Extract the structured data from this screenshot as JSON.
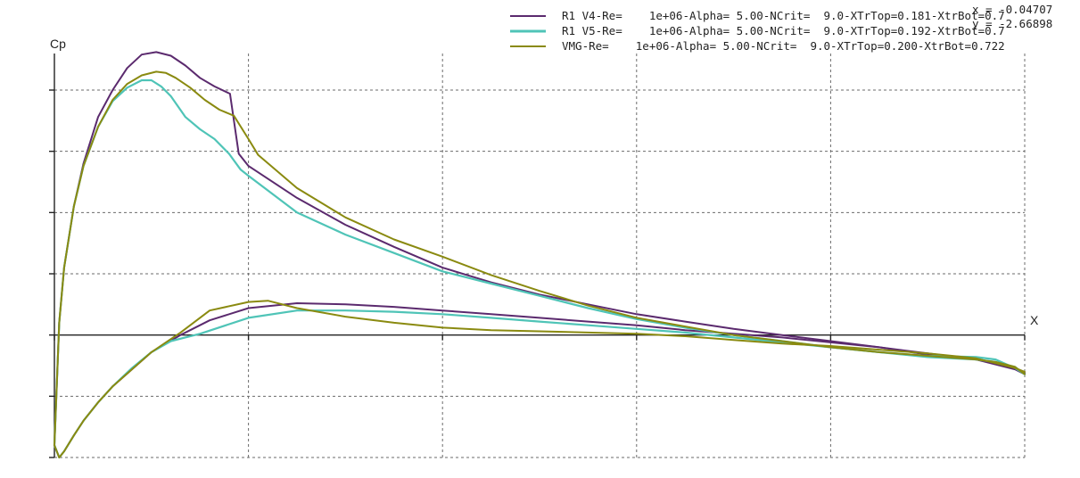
{
  "chart_data": {
    "type": "line",
    "xlabel": "X",
    "ylabel": "Cp",
    "xlim": [
      0.0,
      1.0
    ],
    "ylim": [
      1.0,
      -2.0
    ],
    "y_axis_inverted": true,
    "xticks": [
      0.0,
      0.2,
      0.4,
      0.6,
      0.8,
      1.0
    ],
    "yticks": [
      -2.0,
      -1.5,
      -1.0,
      -0.5,
      0.0,
      0.5,
      1.0
    ],
    "grid": true,
    "legend_position": "top-right",
    "cursor_readout": {
      "x_text": "x = -0.04707",
      "y_text": "y = -2.66898"
    },
    "series": [
      {
        "name": "R1 V4-Re=    1e+06-Alpha= 5.00-NCrit=  9.0-XTrTop=0.181-XtrBot=0.7",
        "color": "#5b2a6e",
        "upper": {
          "x": [
            0.0,
            0.005,
            0.01,
            0.02,
            0.03,
            0.045,
            0.06,
            0.075,
            0.09,
            0.105,
            0.12,
            0.135,
            0.15,
            0.165,
            0.181,
            0.19,
            0.2,
            0.25,
            0.3,
            0.35,
            0.4,
            0.45,
            0.5,
            0.55,
            0.6,
            0.65,
            0.7,
            0.75,
            0.8,
            0.85,
            0.9,
            0.95,
            0.97,
            0.99,
            1.0
          ],
          "cp": [
            0.9,
            -0.1,
            -0.55,
            -1.05,
            -1.4,
            -1.78,
            -2.0,
            -2.18,
            -2.29,
            -2.31,
            -2.28,
            -2.2,
            -2.1,
            -2.03,
            -1.97,
            -1.48,
            -1.38,
            -1.12,
            -0.9,
            -0.72,
            -0.55,
            -0.43,
            -0.33,
            -0.25,
            -0.17,
            -0.11,
            -0.05,
            0.0,
            0.05,
            0.1,
            0.16,
            0.2,
            0.24,
            0.28,
            0.32
          ]
        },
        "lower": {
          "x": [
            0.0,
            0.005,
            0.01,
            0.02,
            0.03,
            0.045,
            0.06,
            0.08,
            0.1,
            0.13,
            0.16,
            0.2,
            0.25,
            0.3,
            0.35,
            0.4,
            0.45,
            0.5,
            0.55,
            0.6,
            0.65,
            0.7,
            0.75,
            0.8,
            0.85,
            0.9,
            0.95,
            0.97,
            0.99,
            1.0
          ],
          "cp": [
            0.9,
            1.0,
            0.95,
            0.82,
            0.7,
            0.55,
            0.42,
            0.28,
            0.14,
            0.0,
            -0.12,
            -0.22,
            -0.26,
            -0.25,
            -0.23,
            -0.2,
            -0.17,
            -0.14,
            -0.11,
            -0.08,
            -0.04,
            -0.01,
            0.02,
            0.06,
            0.1,
            0.15,
            0.2,
            0.23,
            0.27,
            0.31
          ]
        }
      },
      {
        "name": "R1 V5-Re=    1e+06-Alpha= 5.00-NCrit=  9.0-XTrTop=0.192-XtrBot=0.7",
        "color": "#4fc4b7",
        "upper": {
          "x": [
            0.0,
            0.005,
            0.01,
            0.02,
            0.03,
            0.045,
            0.06,
            0.075,
            0.09,
            0.1,
            0.11,
            0.12,
            0.135,
            0.15,
            0.165,
            0.18,
            0.192,
            0.2,
            0.25,
            0.3,
            0.35,
            0.4,
            0.45,
            0.5,
            0.55,
            0.6,
            0.65,
            0.7,
            0.75,
            0.8,
            0.85,
            0.9,
            0.95,
            0.97,
            0.99,
            1.0
          ],
          "cp": [
            0.9,
            -0.1,
            -0.55,
            -1.05,
            -1.38,
            -1.7,
            -1.91,
            -2.02,
            -2.08,
            -2.08,
            -2.03,
            -1.95,
            -1.78,
            -1.68,
            -1.6,
            -1.48,
            -1.35,
            -1.3,
            -1.0,
            -0.82,
            -0.67,
            -0.52,
            -0.42,
            -0.32,
            -0.22,
            -0.13,
            -0.06,
            0.0,
            0.05,
            0.1,
            0.14,
            0.17,
            0.18,
            0.2,
            0.27,
            0.32
          ]
        },
        "lower": {
          "x": [
            0.0,
            0.005,
            0.01,
            0.02,
            0.03,
            0.045,
            0.06,
            0.08,
            0.1,
            0.12,
            0.15,
            0.2,
            0.25,
            0.3,
            0.35,
            0.4,
            0.45,
            0.5,
            0.55,
            0.6,
            0.65,
            0.7,
            0.75,
            0.8,
            0.85,
            0.9,
            0.95,
            0.97,
            0.99,
            1.0
          ],
          "cp": [
            0.9,
            1.0,
            0.95,
            0.82,
            0.7,
            0.55,
            0.42,
            0.27,
            0.14,
            0.05,
            -0.01,
            -0.14,
            -0.2,
            -0.2,
            -0.19,
            -0.17,
            -0.14,
            -0.11,
            -0.08,
            -0.05,
            -0.02,
            0.02,
            0.06,
            0.1,
            0.14,
            0.18,
            0.2,
            0.22,
            0.26,
            0.32
          ]
        }
      },
      {
        "name": "VMG-Re=    1e+06-Alpha= 5.00-NCrit=  9.0-XTrTop=0.200-XtrBot=0.722",
        "color": "#8a8a10",
        "upper": {
          "x": [
            0.0,
            0.005,
            0.01,
            0.02,
            0.03,
            0.045,
            0.06,
            0.075,
            0.09,
            0.105,
            0.115,
            0.125,
            0.14,
            0.155,
            0.17,
            0.185,
            0.2,
            0.21,
            0.25,
            0.3,
            0.35,
            0.4,
            0.45,
            0.5,
            0.55,
            0.6,
            0.65,
            0.7,
            0.75,
            0.8,
            0.85,
            0.9,
            0.95,
            0.97,
            0.99,
            1.0
          ],
          "cp": [
            0.9,
            -0.1,
            -0.55,
            -1.05,
            -1.38,
            -1.7,
            -1.92,
            -2.05,
            -2.12,
            -2.15,
            -2.14,
            -2.1,
            -2.02,
            -1.92,
            -1.84,
            -1.79,
            -1.6,
            -1.47,
            -1.2,
            -0.96,
            -0.78,
            -0.64,
            -0.49,
            -0.36,
            -0.24,
            -0.14,
            -0.07,
            0.0,
            0.05,
            0.1,
            0.14,
            0.17,
            0.2,
            0.22,
            0.26,
            0.32
          ]
        },
        "lower": {
          "x": [
            0.0,
            0.005,
            0.01,
            0.02,
            0.03,
            0.045,
            0.06,
            0.08,
            0.1,
            0.13,
            0.16,
            0.2,
            0.22,
            0.25,
            0.3,
            0.35,
            0.4,
            0.45,
            0.5,
            0.55,
            0.6,
            0.65,
            0.7,
            0.75,
            0.8,
            0.85,
            0.9,
            0.95,
            0.97,
            0.99,
            1.0
          ],
          "cp": [
            0.9,
            1.0,
            0.95,
            0.82,
            0.7,
            0.55,
            0.42,
            0.28,
            0.14,
            -0.02,
            -0.2,
            -0.27,
            -0.28,
            -0.22,
            -0.15,
            -0.1,
            -0.06,
            -0.04,
            -0.03,
            -0.02,
            -0.01,
            0.01,
            0.04,
            0.07,
            0.09,
            0.12,
            0.15,
            0.19,
            0.23,
            0.27,
            0.3
          ]
        }
      }
    ]
  }
}
